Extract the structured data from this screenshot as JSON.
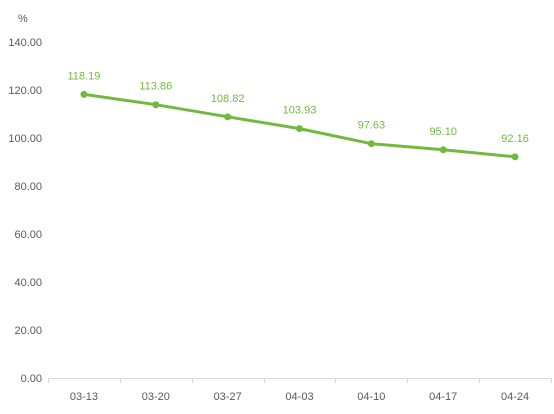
{
  "chart_data": {
    "type": "line",
    "unit_label": "%",
    "categories": [
      "03-13",
      "03-20",
      "03-27",
      "04-03",
      "04-10",
      "04-17",
      "04-24"
    ],
    "series": [
      {
        "values": [
          118.19,
          113.86,
          108.82,
          103.93,
          97.63,
          95.1,
          92.16
        ],
        "value_labels": [
          "118.19",
          "113.86",
          "108.82",
          "103.93",
          "97.63",
          "95.10",
          "92.16"
        ],
        "color": "#72b93f"
      }
    ],
    "ylim": [
      0,
      140
    ],
    "yticks": [
      0,
      20,
      40,
      60,
      80,
      100,
      120,
      140
    ],
    "ytick_labels": [
      "0.00",
      "20.00",
      "40.00",
      "60.00",
      "80.00",
      "100.00",
      "120.00",
      "140.00"
    ],
    "grid": false,
    "legend": "none",
    "colors": {
      "line": "#72b93f",
      "axis": "#d9d9d9",
      "text": "#595959"
    }
  }
}
